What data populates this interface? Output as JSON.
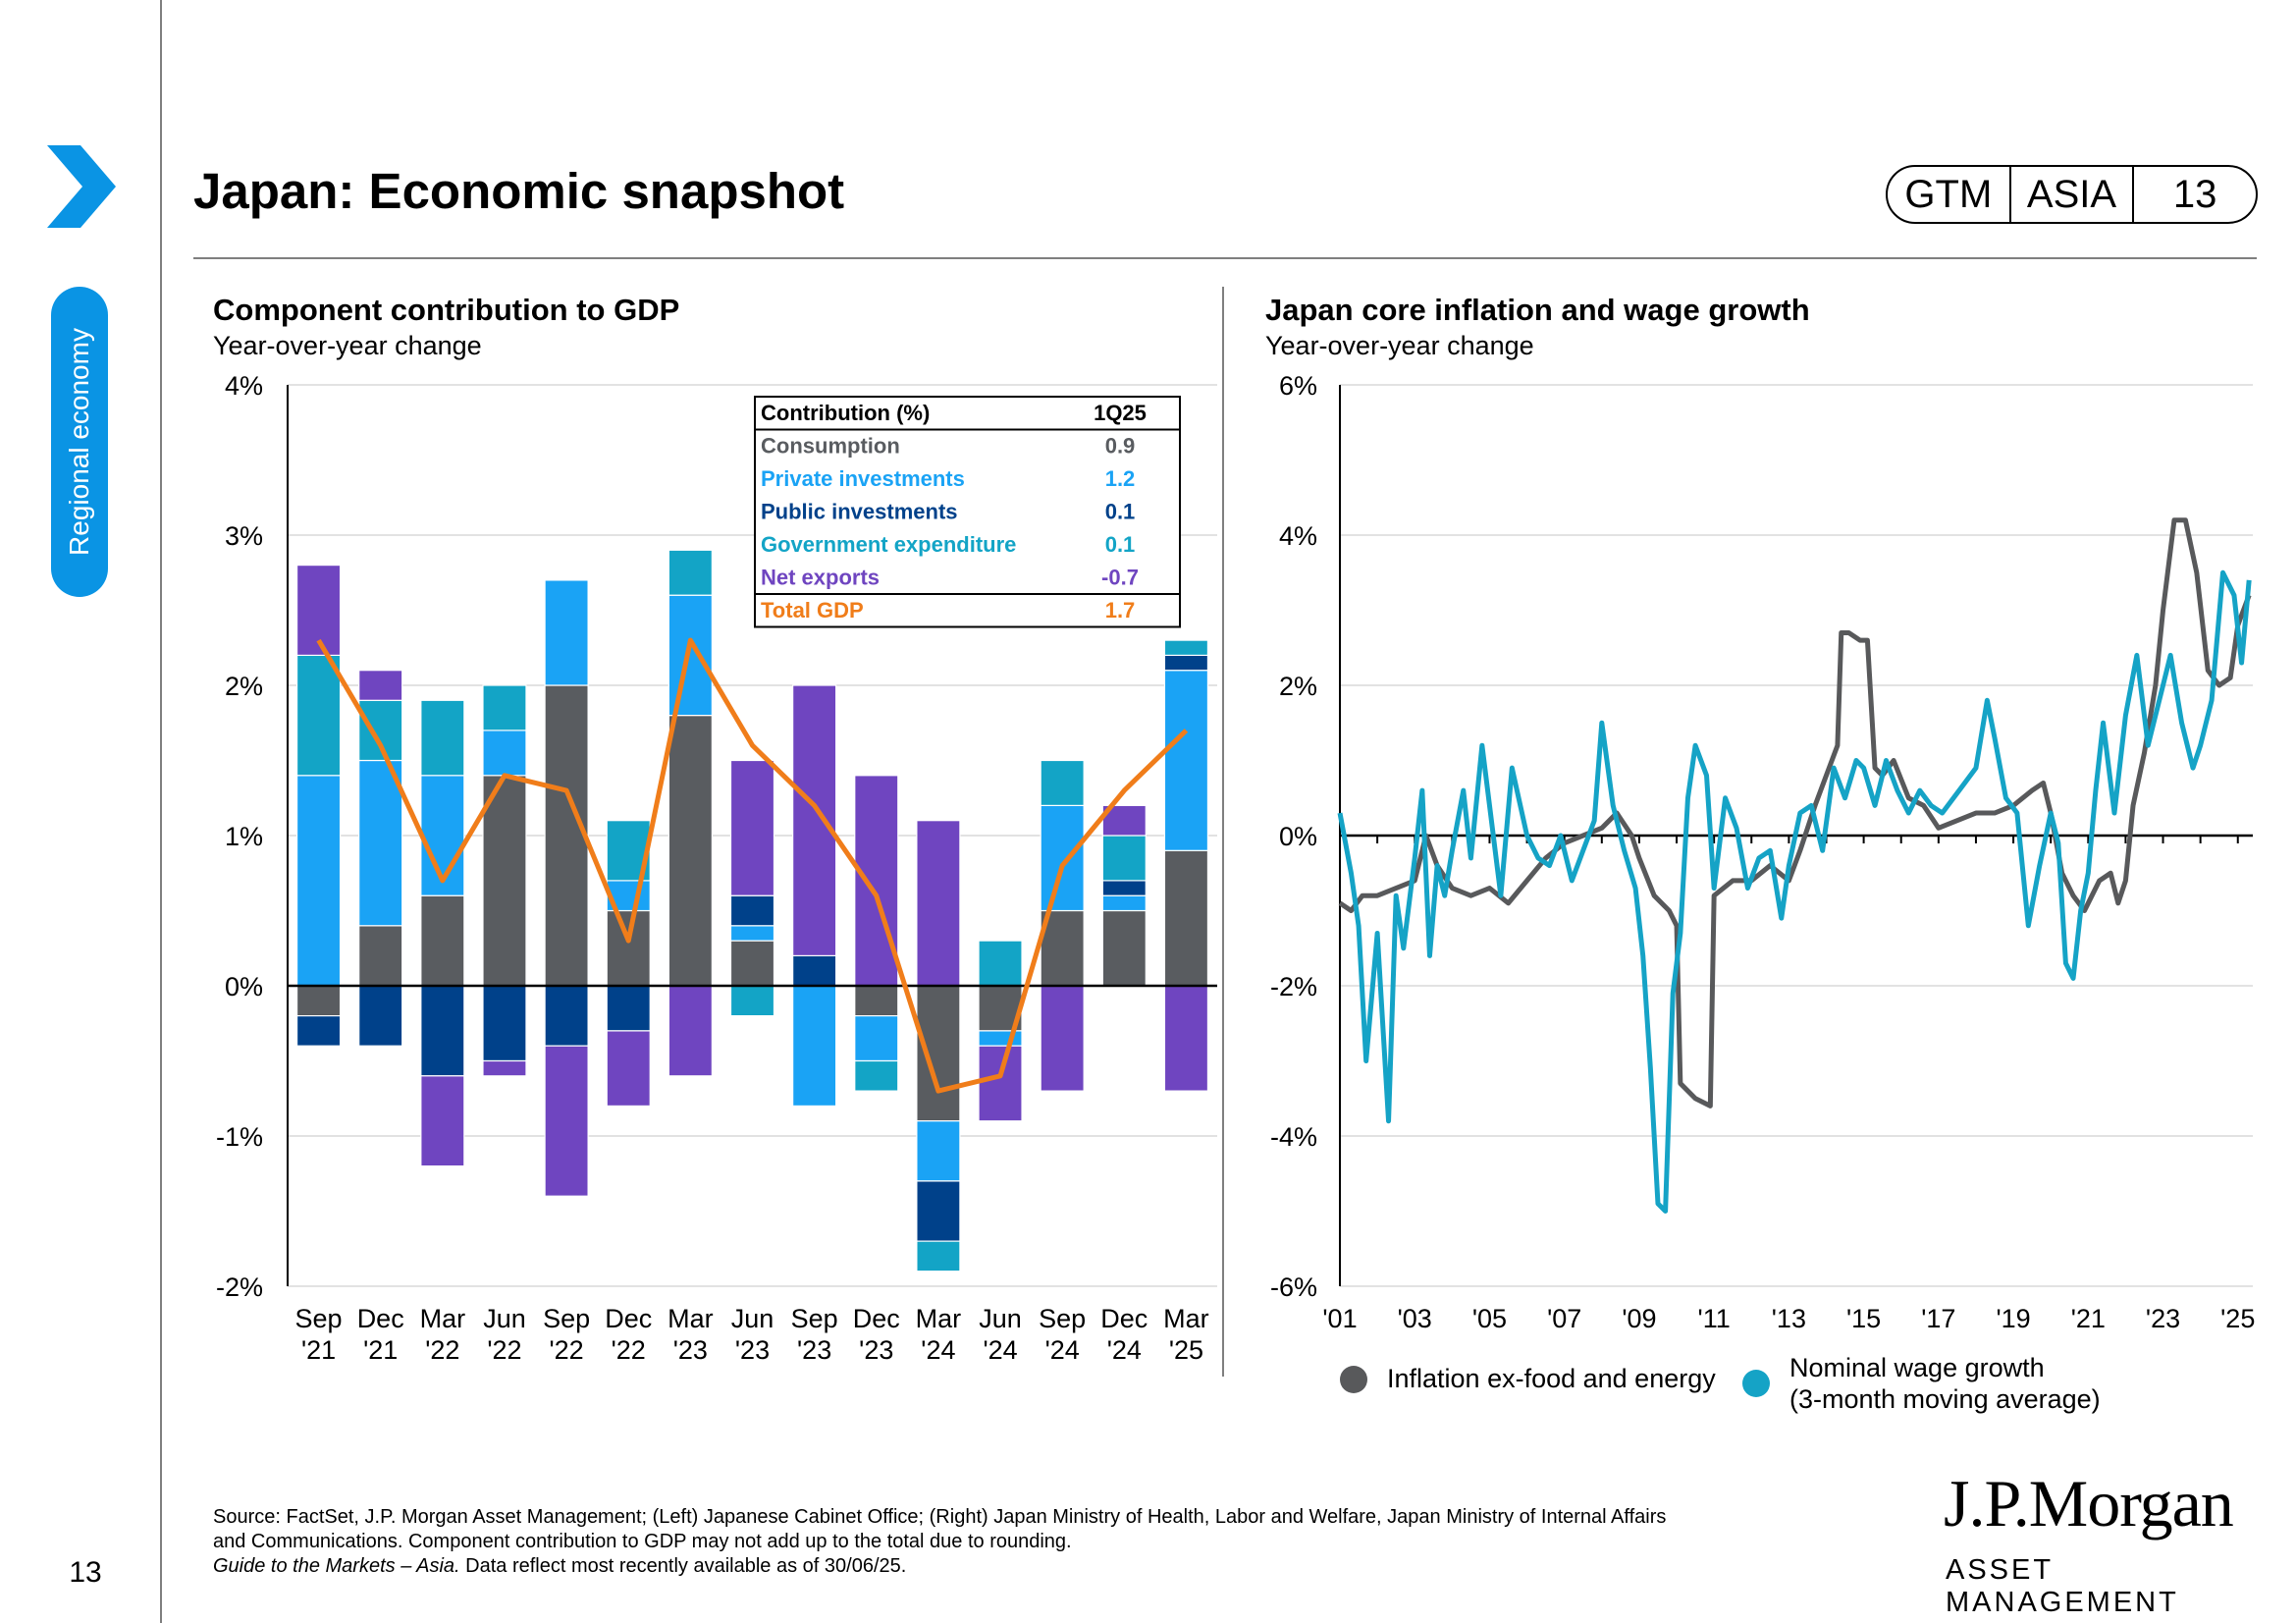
{
  "header": {
    "title": "Japan: Economic snapshot",
    "badge": [
      "GTM",
      "ASIA",
      "13"
    ],
    "section": "Regional economy",
    "page_number": "13"
  },
  "colors": {
    "consumption": "#595c60",
    "private": "#1aa3f5",
    "public": "#00418a",
    "government": "#13a4c6",
    "net_exports": "#6f45c0",
    "total": "#f07d1a",
    "inflation": "#58595b",
    "wage": "#15a3c6",
    "accent": "#0a94e4"
  },
  "left_chart": {
    "title": "Component contribution to GDP",
    "subtitle": "Year-over-year change",
    "table": {
      "header": [
        "Contribution (%)",
        "1Q25"
      ],
      "rows": [
        {
          "label": "Consumption",
          "value": "0.9",
          "key": "consumption"
        },
        {
          "label": "Private investments",
          "value": "1.2",
          "key": "private"
        },
        {
          "label": "Public investments",
          "value": "0.1",
          "key": "public"
        },
        {
          "label": "Government expenditure",
          "value": "0.1",
          "key": "government"
        },
        {
          "label": "Net exports",
          "value": "-0.7",
          "key": "net_exports"
        },
        {
          "label": "Total GDP",
          "value": "1.7",
          "key": "total"
        }
      ]
    }
  },
  "right_chart": {
    "title": "Japan core inflation and wage growth",
    "subtitle": "Year-over-year change",
    "legend": {
      "inflation": "Inflation ex-food and energy",
      "wage_line1": "Nominal wage growth",
      "wage_line2": "(3-month moving average)"
    }
  },
  "chart_data": [
    {
      "type": "bar",
      "stacked": true,
      "title": "Component contribution to GDP",
      "subtitle": "Year-over-year change",
      "ylim": [
        -2,
        4
      ],
      "yticks": [
        "-2%",
        "-1%",
        "0%",
        "1%",
        "2%",
        "3%",
        "4%"
      ],
      "categories": [
        "Sep '21",
        "Dec '21",
        "Mar '22",
        "Jun '22",
        "Sep '22",
        "Dec '22",
        "Mar '23",
        "Jun '23",
        "Sep '23",
        "Dec '23",
        "Mar '24",
        "Jun '24",
        "Sep '24",
        "Dec '24",
        "Mar '25"
      ],
      "series": [
        {
          "name": "Consumption",
          "key": "consumption",
          "values": [
            -0.2,
            0.4,
            0.6,
            1.4,
            2.0,
            0.5,
            1.8,
            0.3,
            0.0,
            -0.2,
            -0.9,
            -0.3,
            0.5,
            0.5,
            0.9
          ]
        },
        {
          "name": "Private investments",
          "key": "private",
          "values": [
            1.4,
            1.1,
            0.8,
            0.3,
            0.7,
            0.2,
            0.8,
            0.1,
            -0.8,
            -0.3,
            -0.4,
            -0.1,
            0.7,
            0.1,
            1.2
          ]
        },
        {
          "name": "Public investments",
          "key": "public",
          "values": [
            -0.2,
            -0.4,
            -0.6,
            -0.5,
            -0.4,
            -0.3,
            0.0,
            0.2,
            0.2,
            0.0,
            -0.4,
            0.0,
            0.0,
            0.1,
            0.1
          ]
        },
        {
          "name": "Government expenditure",
          "key": "government",
          "values": [
            0.8,
            0.4,
            0.5,
            0.3,
            0.0,
            0.4,
            0.3,
            -0.2,
            0.0,
            -0.2,
            -0.2,
            0.3,
            0.3,
            0.3,
            0.1
          ]
        },
        {
          "name": "Net exports",
          "key": "net_exports",
          "values": [
            0.6,
            0.2,
            -0.6,
            -0.1,
            -1.0,
            -0.5,
            -0.6,
            0.9,
            1.8,
            1.4,
            1.1,
            -0.5,
            -0.7,
            0.2,
            -0.7
          ]
        }
      ],
      "line": {
        "name": "Total GDP",
        "key": "total",
        "values": [
          2.3,
          1.6,
          0.7,
          1.4,
          1.3,
          0.3,
          2.3,
          1.6,
          1.2,
          0.6,
          -0.7,
          -0.6,
          0.8,
          1.3,
          1.7
        ]
      }
    },
    {
      "type": "line",
      "title": "Japan core inflation and wage growth",
      "subtitle": "Year-over-year change",
      "ylim": [
        -6,
        6
      ],
      "yticks": [
        "-6%",
        "-4%",
        "-2%",
        "0%",
        "2%",
        "4%",
        "6%"
      ],
      "xlim": [
        2001,
        2025.4
      ],
      "xticks": [
        "'01",
        "'03",
        "'05",
        "'07",
        "'09",
        "'11",
        "'13",
        "'15",
        "'17",
        "'19",
        "'21",
        "'23",
        "'25"
      ],
      "series": [
        {
          "name": "Inflation ex-food and energy",
          "key": "inflation",
          "x": [
            2001.0,
            2001.3,
            2001.6,
            2002.0,
            2002.5,
            2003.0,
            2003.3,
            2003.6,
            2004.0,
            2004.5,
            2005.0,
            2005.5,
            2006.0,
            2006.5,
            2007.0,
            2007.5,
            2008.0,
            2008.4,
            2008.8,
            2009.0,
            2009.4,
            2009.8,
            2010.0,
            2010.1,
            2010.5,
            2010.9,
            2011.0,
            2011.5,
            2012.0,
            2012.5,
            2013.0,
            2013.3,
            2013.7,
            2014.0,
            2014.3,
            2014.4,
            2014.6,
            2014.9,
            2015.1,
            2015.3,
            2015.5,
            2015.8,
            2016.2,
            2016.6,
            2017.0,
            2017.5,
            2018.0,
            2018.5,
            2019.0,
            2019.5,
            2019.8,
            2020.0,
            2020.3,
            2020.6,
            2020.9,
            2021.0,
            2021.3,
            2021.6,
            2021.8,
            2022.0,
            2022.2,
            2022.5,
            2022.8,
            2023.0,
            2023.3,
            2023.6,
            2023.9,
            2024.2,
            2024.5,
            2024.8,
            2025.0,
            2025.3
          ],
          "y": [
            -0.9,
            -1.0,
            -0.8,
            -0.8,
            -0.7,
            -0.6,
            0.0,
            -0.4,
            -0.7,
            -0.8,
            -0.7,
            -0.9,
            -0.6,
            -0.3,
            -0.1,
            0.0,
            0.1,
            0.3,
            0.0,
            -0.3,
            -0.8,
            -1.0,
            -1.2,
            -3.3,
            -3.5,
            -3.6,
            -0.8,
            -0.6,
            -0.6,
            -0.4,
            -0.6,
            -0.2,
            0.4,
            0.8,
            1.2,
            2.7,
            2.7,
            2.6,
            2.6,
            0.9,
            0.8,
            1.0,
            0.5,
            0.4,
            0.1,
            0.2,
            0.3,
            0.3,
            0.4,
            0.6,
            0.7,
            0.3,
            -0.5,
            -0.8,
            -1.0,
            -0.9,
            -0.6,
            -0.5,
            -0.9,
            -0.6,
            0.4,
            1.1,
            2.0,
            3.0,
            4.2,
            4.2,
            3.5,
            2.2,
            2.0,
            2.1,
            2.8,
            3.2
          ]
        },
        {
          "name": "Nominal wage growth (3-month moving average)",
          "key": "wage",
          "x": [
            2001.0,
            2001.3,
            2001.5,
            2001.7,
            2002.0,
            2002.3,
            2002.5,
            2002.7,
            2003.0,
            2003.2,
            2003.4,
            2003.6,
            2003.8,
            2004.0,
            2004.3,
            2004.5,
            2004.8,
            2005.0,
            2005.3,
            2005.6,
            2006.0,
            2006.3,
            2006.6,
            2006.9,
            2007.2,
            2007.5,
            2007.8,
            2008.0,
            2008.3,
            2008.6,
            2008.9,
            2009.1,
            2009.3,
            2009.5,
            2009.7,
            2009.9,
            2010.1,
            2010.3,
            2010.5,
            2010.8,
            2011.0,
            2011.3,
            2011.6,
            2011.9,
            2012.2,
            2012.5,
            2012.8,
            2013.0,
            2013.3,
            2013.6,
            2013.9,
            2014.2,
            2014.5,
            2014.8,
            2015.0,
            2015.3,
            2015.6,
            2015.9,
            2016.2,
            2016.5,
            2016.8,
            2017.1,
            2017.4,
            2017.7,
            2018.0,
            2018.3,
            2018.5,
            2018.8,
            2019.1,
            2019.4,
            2019.7,
            2020.0,
            2020.2,
            2020.4,
            2020.6,
            2020.8,
            2021.0,
            2021.2,
            2021.4,
            2021.7,
            2022.0,
            2022.3,
            2022.6,
            2022.9,
            2023.2,
            2023.5,
            2023.8,
            2024.0,
            2024.3,
            2024.6,
            2024.9,
            2025.1,
            2025.3
          ],
          "y": [
            0.3,
            -0.5,
            -1.2,
            -3.0,
            -1.3,
            -3.8,
            -0.8,
            -1.5,
            -0.3,
            0.6,
            -1.6,
            -0.4,
            -0.8,
            -0.2,
            0.6,
            -0.3,
            1.2,
            0.4,
            -0.8,
            0.9,
            0.0,
            -0.3,
            -0.4,
            0.0,
            -0.6,
            -0.2,
            0.2,
            1.5,
            0.4,
            -0.2,
            -0.7,
            -1.6,
            -3.1,
            -4.9,
            -5.0,
            -2.1,
            -1.3,
            0.5,
            1.2,
            0.8,
            -0.7,
            0.5,
            0.1,
            -0.7,
            -0.3,
            -0.2,
            -1.1,
            -0.4,
            0.3,
            0.4,
            -0.2,
            0.9,
            0.5,
            1.0,
            0.9,
            0.4,
            1.0,
            0.6,
            0.3,
            0.6,
            0.4,
            0.3,
            0.5,
            0.7,
            0.9,
            1.8,
            1.3,
            0.5,
            0.3,
            -1.2,
            -0.4,
            0.3,
            -0.1,
            -1.7,
            -1.9,
            -1.0,
            -0.5,
            0.6,
            1.5,
            0.3,
            1.6,
            2.4,
            1.2,
            1.8,
            2.4,
            1.5,
            0.9,
            1.2,
            1.8,
            3.5,
            3.2,
            2.3,
            3.4
          ]
        }
      ]
    }
  ],
  "footer": {
    "source_line1": "Source: FactSet, J.P. Morgan Asset Management; (Left) Japanese Cabinet Office; (Right) Japan Ministry of Health, Labor and Welfare, Japan Ministry of Internal Affairs",
    "source_line2": "and Communications. Component contribution to GDP may not add up to the total due to rounding.",
    "source_italic": "Guide to the Markets – Asia.",
    "source_rest": " Data reflect most recently available as of 30/06/25.",
    "logo_main": "J.P.Morgan",
    "logo_sub": "ASSET MANAGEMENT"
  }
}
